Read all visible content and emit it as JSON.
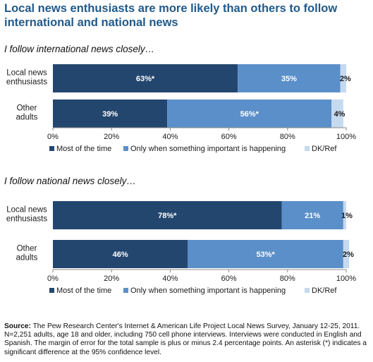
{
  "title": "Local news enthusiasts are more likely than others to follow international and national news",
  "colors": {
    "most": "#23466f",
    "only": "#5b8fc9",
    "dk": "#c5d9ef"
  },
  "chart_data": [
    {
      "type": "bar",
      "orientation": "horizontal-stacked",
      "title": "I follow international news closely…",
      "categories": [
        "Local news enthusiasts",
        "Other adults"
      ],
      "category_lines": [
        [
          "Local news",
          "enthusiasts"
        ],
        [
          "Other",
          "adults"
        ]
      ],
      "series": [
        {
          "name": "Most of the time",
          "values": [
            63,
            39
          ],
          "labels": [
            "63%*",
            "39%"
          ]
        },
        {
          "name": "Only when something important is happening",
          "values": [
            35,
            56
          ],
          "labels": [
            "35%",
            "56%*"
          ]
        },
        {
          "name": "DK/Ref",
          "values": [
            2,
            4
          ],
          "labels": [
            "2%",
            "4%"
          ]
        }
      ],
      "xlim": [
        0,
        100
      ],
      "xticks": [
        "0%",
        "20%",
        "40%",
        "60%",
        "80%",
        "100%"
      ],
      "legend": "bottom"
    },
    {
      "type": "bar",
      "orientation": "horizontal-stacked",
      "title": "I follow national news closely…",
      "categories": [
        "Local news enthusiasts",
        "Other adults"
      ],
      "category_lines": [
        [
          "Local news",
          "enthusiasts"
        ],
        [
          "Other",
          "adults"
        ]
      ],
      "series": [
        {
          "name": "Most of the time",
          "values": [
            78,
            46
          ],
          "labels": [
            "78%*",
            "46%"
          ]
        },
        {
          "name": "Only when something important is happening",
          "values": [
            21,
            53
          ],
          "labels": [
            "21%",
            "53%*"
          ]
        },
        {
          "name": "DK/Ref",
          "values": [
            1,
            2
          ],
          "labels": [
            "1%",
            "2%"
          ]
        }
      ],
      "xlim": [
        0,
        100
      ],
      "xticks": [
        "0%",
        "20%",
        "40%",
        "60%",
        "80%",
        "100%"
      ],
      "legend": "bottom"
    }
  ],
  "footer": {
    "source_label": "Source:",
    "source_text": " The Pew Research Center's Internet & American Life Project Local News Survey, January 12-25, 2011. N=2,251 adults, age 18 and older, including 750 cell phone interviews. Interviews were conducted in English and Spanish. The margin of error for the total sample is plus or minus 2.4 percentage points. An asterisk (*) indicates a significant difference at the 95% confidence level."
  }
}
